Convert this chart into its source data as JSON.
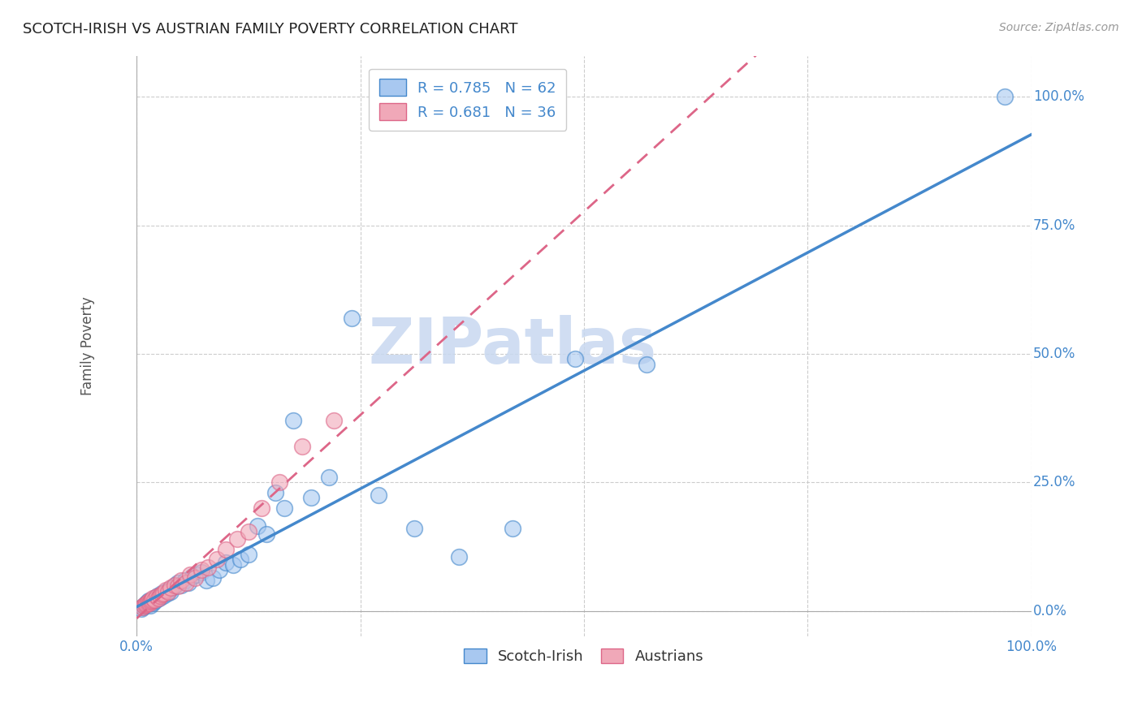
{
  "title": "SCOTCH-IRISH VS AUSTRIAN FAMILY POVERTY CORRELATION CHART",
  "source": "Source: ZipAtlas.com",
  "ylabel": "Family Poverty",
  "ytick_values": [
    0.0,
    0.25,
    0.5,
    0.75,
    1.0
  ],
  "ytick_labels": [
    "0.0%",
    "25.0%",
    "50.0%",
    "75.0%",
    "100.0%"
  ],
  "xlim": [
    0.0,
    1.0
  ],
  "ylim": [
    -0.05,
    1.08
  ],
  "scotch_irish_R": 0.785,
  "scotch_irish_N": 62,
  "austrian_R": 0.681,
  "austrian_N": 36,
  "scotch_irish_color": "#A8C8F0",
  "austrian_color": "#F0A8B8",
  "line_scotch_color": "#4488CC",
  "line_austrian_color": "#DD6688",
  "watermark_color": "#C8D8F0",
  "scotch_irish_x": [
    0.005,
    0.007,
    0.008,
    0.009,
    0.01,
    0.01,
    0.011,
    0.012,
    0.013,
    0.013,
    0.014,
    0.015,
    0.015,
    0.016,
    0.017,
    0.018,
    0.019,
    0.02,
    0.02,
    0.021,
    0.022,
    0.023,
    0.025,
    0.026,
    0.027,
    0.028,
    0.03,
    0.032,
    0.034,
    0.036,
    0.038,
    0.04,
    0.043,
    0.046,
    0.05,
    0.054,
    0.058,
    0.062,
    0.067,
    0.072,
    0.078,
    0.085,
    0.092,
    0.1,
    0.108,
    0.116,
    0.125,
    0.135,
    0.145,
    0.155,
    0.165,
    0.175,
    0.195,
    0.215,
    0.24,
    0.27,
    0.31,
    0.36,
    0.42,
    0.49,
    0.57,
    0.97
  ],
  "scotch_irish_y": [
    0.005,
    0.008,
    0.01,
    0.01,
    0.01,
    0.013,
    0.015,
    0.012,
    0.018,
    0.02,
    0.015,
    0.01,
    0.018,
    0.015,
    0.018,
    0.015,
    0.02,
    0.022,
    0.025,
    0.02,
    0.025,
    0.03,
    0.025,
    0.03,
    0.028,
    0.035,
    0.03,
    0.038,
    0.035,
    0.04,
    0.038,
    0.045,
    0.05,
    0.055,
    0.05,
    0.06,
    0.055,
    0.068,
    0.07,
    0.075,
    0.06,
    0.065,
    0.08,
    0.095,
    0.09,
    0.1,
    0.11,
    0.165,
    0.15,
    0.23,
    0.2,
    0.37,
    0.22,
    0.26,
    0.57,
    0.225,
    0.16,
    0.105,
    0.16,
    0.49,
    0.48,
    1.0
  ],
  "austrian_x": [
    0.006,
    0.008,
    0.01,
    0.011,
    0.012,
    0.013,
    0.014,
    0.015,
    0.016,
    0.017,
    0.018,
    0.02,
    0.022,
    0.024,
    0.026,
    0.028,
    0.03,
    0.032,
    0.035,
    0.038,
    0.042,
    0.046,
    0.05,
    0.055,
    0.06,
    0.065,
    0.072,
    0.08,
    0.09,
    0.1,
    0.112,
    0.125,
    0.14,
    0.16,
    0.185,
    0.22
  ],
  "austrian_y": [
    0.008,
    0.01,
    0.012,
    0.014,
    0.015,
    0.018,
    0.015,
    0.018,
    0.02,
    0.022,
    0.025,
    0.022,
    0.028,
    0.025,
    0.03,
    0.032,
    0.035,
    0.04,
    0.038,
    0.045,
    0.05,
    0.048,
    0.06,
    0.055,
    0.07,
    0.065,
    0.08,
    0.085,
    0.1,
    0.12,
    0.14,
    0.155,
    0.2,
    0.25,
    0.32,
    0.37
  ],
  "line_scotch_slope": 0.82,
  "line_scotch_intercept": 0.005,
  "line_austrian_slope": 0.68,
  "line_austrian_intercept": 0.01
}
